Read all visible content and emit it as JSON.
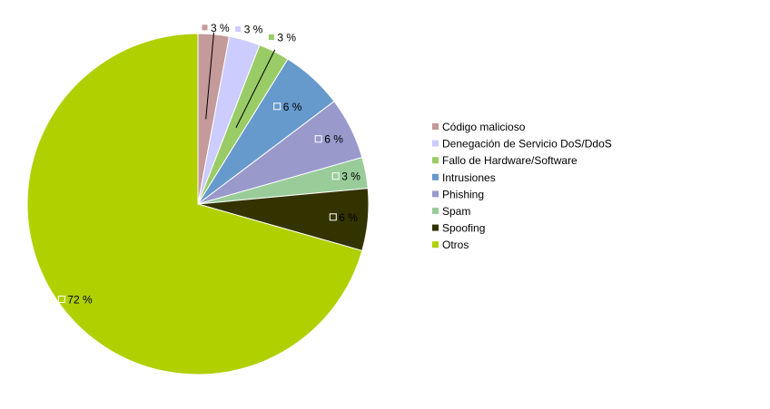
{
  "chart_data": {
    "type": "pie",
    "categories": [
      "Código malicioso",
      "Denegación de Servicio DoS/DdoS",
      "Fallo de Hardware/Software",
      "Intrusiones",
      "Phishing",
      "Spam",
      "Spoofing",
      "Otros"
    ],
    "values": [
      3,
      3,
      3,
      6,
      6,
      3,
      6,
      72
    ],
    "value_labels": [
      "3 %",
      "3 %",
      "3 %",
      "6 %",
      "6 %",
      "3 %",
      "6 %",
      "72 %"
    ],
    "unit": "%",
    "colors": [
      "#c49a9a",
      "#ccccff",
      "#99cc66",
      "#6699cc",
      "#9999cc",
      "#99cc99",
      "#333300",
      "#b0d000"
    ],
    "legend_position": "right",
    "start_angle": "12 o'clock, clockwise"
  }
}
